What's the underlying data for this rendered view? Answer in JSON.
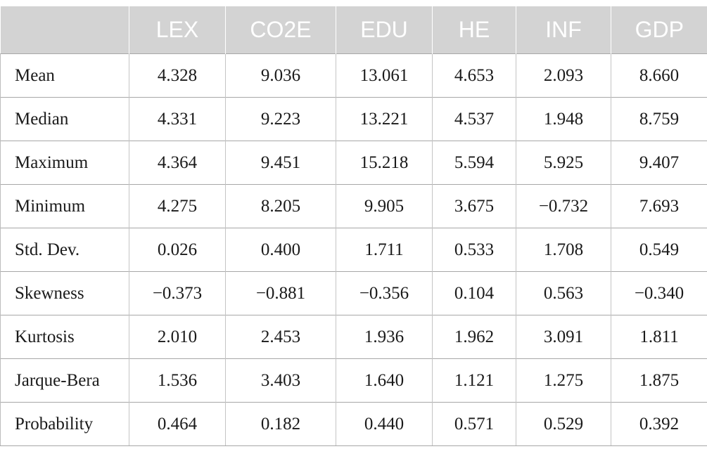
{
  "table": {
    "headers": [
      "",
      "LEX",
      "CO2E",
      "EDU",
      "HE",
      "INF",
      "GDP"
    ],
    "rows": [
      {
        "label": "Mean",
        "values": [
          "4.328",
          "9.036",
          "13.061",
          "4.653",
          "2.093",
          "8.660"
        ]
      },
      {
        "label": "Median",
        "values": [
          "4.331",
          "9.223",
          "13.221",
          "4.537",
          "1.948",
          "8.759"
        ]
      },
      {
        "label": "Maximum",
        "values": [
          "4.364",
          "9.451",
          "15.218",
          "5.594",
          "5.925",
          "9.407"
        ]
      },
      {
        "label": "Minimum",
        "values": [
          "4.275",
          "8.205",
          "9.905",
          "3.675",
          "−0.732",
          "7.693"
        ]
      },
      {
        "label": "Std. Dev.",
        "values": [
          "0.026",
          "0.400",
          "1.711",
          "0.533",
          "1.708",
          "0.549"
        ]
      },
      {
        "label": "Skewness",
        "values": [
          "−0.373",
          "−0.881",
          "−0.356",
          "0.104",
          "0.563",
          "−0.340"
        ]
      },
      {
        "label": "Kurtosis",
        "values": [
          "2.010",
          "2.453",
          "1.936",
          "1.962",
          "3.091",
          "1.811"
        ]
      },
      {
        "label": "Jarque-Bera",
        "values": [
          "1.536",
          "3.403",
          "1.640",
          "1.121",
          "1.275",
          "1.875"
        ]
      },
      {
        "label": "Probability",
        "values": [
          "0.464",
          "0.182",
          "0.440",
          "0.571",
          "0.529",
          "0.392"
        ]
      }
    ]
  }
}
